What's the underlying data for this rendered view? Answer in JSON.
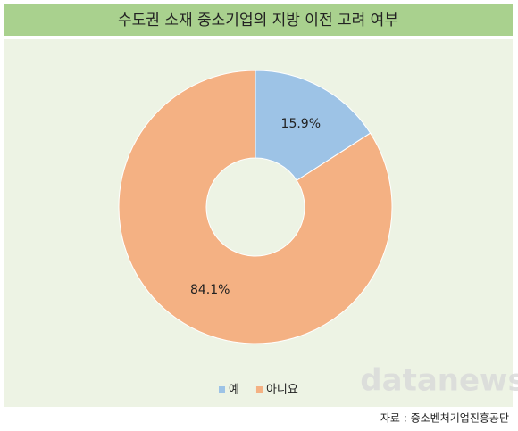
{
  "chart_data": {
    "type": "pie",
    "title": "수도권 소재 중소기업의 지방 이전 고려 여부",
    "categories": [
      "예",
      "아니요"
    ],
    "values": [
      15.9,
      84.1
    ],
    "value_labels": [
      "15.9%",
      "84.1%"
    ],
    "colors": [
      "#9dc3e6",
      "#f4b183"
    ],
    "donut": true,
    "source": "자료 : 중소벤처기업진흥공단",
    "watermark": "datanews"
  }
}
